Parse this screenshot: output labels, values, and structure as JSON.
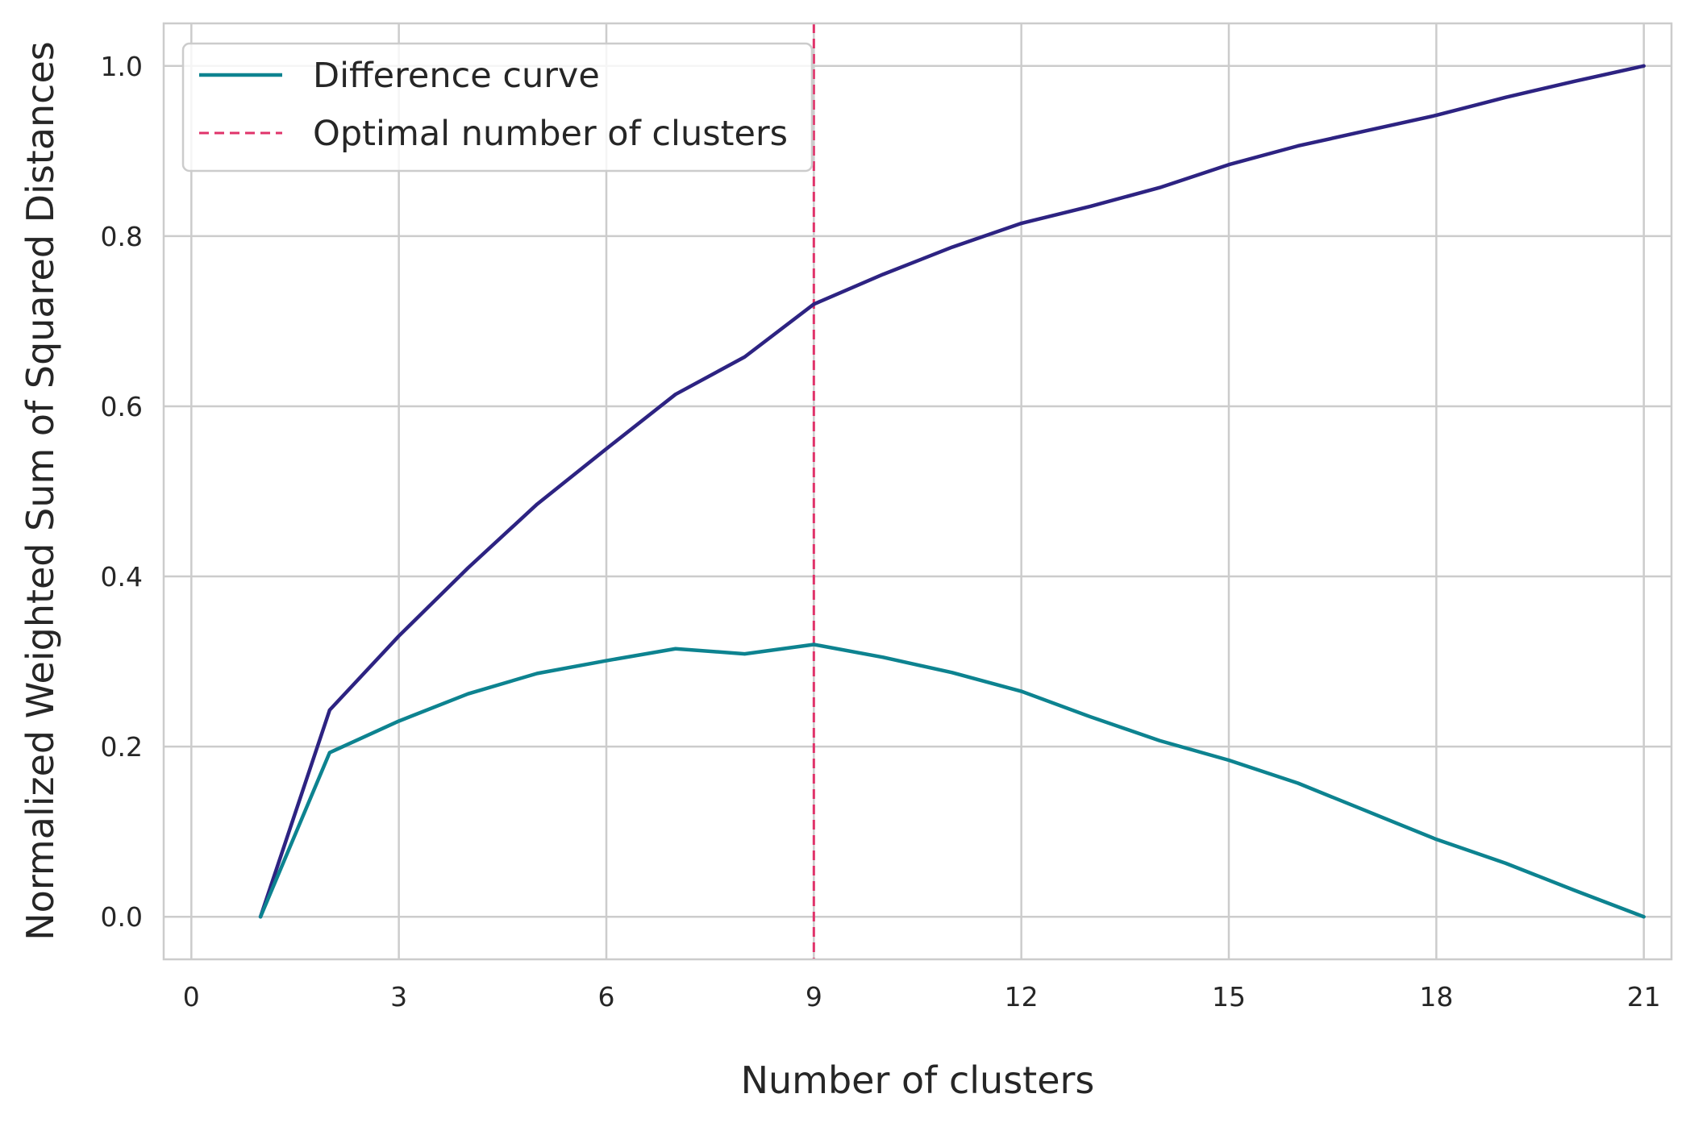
{
  "chart_data": {
    "type": "line",
    "xlabel": "Number of clusters",
    "ylabel": "Normalized Weighted Sum of Squared Distances",
    "xlim": [
      -0.4,
      21.4
    ],
    "ylim": [
      -0.05,
      1.05
    ],
    "x_ticks": [
      0,
      3,
      6,
      9,
      12,
      15,
      18,
      21
    ],
    "y_ticks": [
      0.0,
      0.2,
      0.4,
      0.6,
      0.8,
      1.0
    ],
    "x_tick_labels": [
      "0",
      "3",
      "6",
      "9",
      "12",
      "15",
      "18",
      "21"
    ],
    "y_tick_labels": [
      "0.0",
      "0.2",
      "0.4",
      "0.6",
      "0.8",
      "1.0"
    ],
    "grid": true,
    "legend_position": "top-left",
    "x": [
      1,
      2,
      3,
      4,
      5,
      6,
      7,
      8,
      9,
      10,
      11,
      12,
      13,
      14,
      15,
      16,
      17,
      18,
      19,
      20,
      21
    ],
    "series": [
      {
        "color": "#2d2382",
        "values": [
          0.0,
          0.243,
          0.33,
          0.41,
          0.485,
          0.55,
          0.614,
          0.658,
          0.72,
          0.755,
          0.787,
          0.815,
          0.835,
          0.857,
          0.884,
          0.906,
          0.924,
          0.942,
          0.963,
          0.982,
          1.0
        ]
      },
      {
        "name": "Difference curve",
        "color": "#0d8390",
        "values": [
          0.0,
          0.193,
          0.23,
          0.262,
          0.286,
          0.301,
          0.315,
          0.309,
          0.32,
          0.305,
          0.287,
          0.265,
          0.235,
          0.207,
          0.184,
          0.157,
          0.124,
          0.091,
          0.063,
          0.031,
          0.0
        ]
      }
    ],
    "vline": {
      "name": "Optimal number of clusters",
      "x": 9,
      "color": "#e0336a",
      "style": "dashed"
    }
  }
}
